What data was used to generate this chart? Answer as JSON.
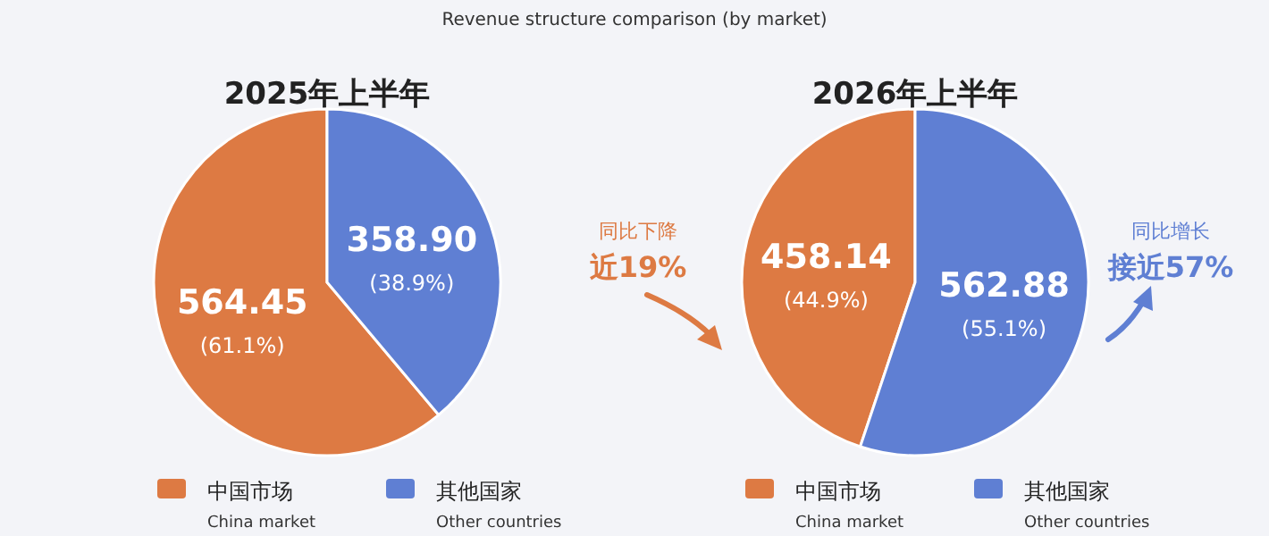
{
  "chart_data": [
    {
      "type": "pie",
      "title": "2025年上半年",
      "categories": [
        "中国市场\nChina market",
        "其他国家\nOther countries"
      ],
      "values": [
        564.45,
        358.9
      ],
      "colors": [
        "#dd7a43",
        "#5f7fd3"
      ],
      "value_labels": [
        "564.45\n(61.1%)",
        "358.90\n(38.9%)"
      ],
      "legend": "bottom",
      "annotations": [
        "Revenue structure comparison (by market)"
      ]
    },
    {
      "type": "pie",
      "title": "2026年上半年",
      "categories": [
        "中国市场\nChina market",
        "其他国家\nOther countries"
      ],
      "values": [
        458.14,
        562.88
      ],
      "colors": [
        "#dd7a43",
        "#5f7fd3"
      ],
      "value_labels": [
        "458.14\n(44.9%)",
        "562.88\n(55.1%)"
      ],
      "legend": "bottom",
      "annotations": [
        "同比下降",
        "近19%",
        "同比增长",
        "接近57%"
      ]
    }
  ]
}
